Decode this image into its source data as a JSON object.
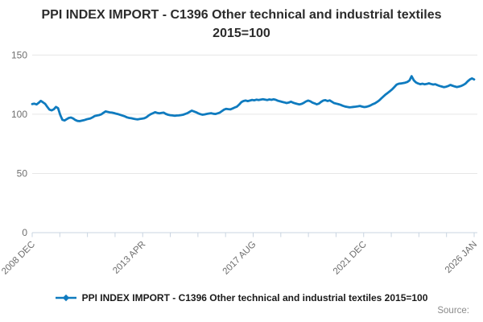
{
  "title": "PPI INDEX IMPORT - C1396 Other technical and industrial textiles 2015=100",
  "legend": {
    "label": "PPI INDEX IMPORT - C1396 Other technical and industrial textiles 2015=100"
  },
  "source_label": "Source:",
  "colors": {
    "line": "#0f7bbf",
    "grid": "#e6e6e6",
    "axis": "#c9d4e0",
    "tick_label": "#6e6e6e",
    "title_text": "#2b2b2b",
    "source_text": "#8a8a8a"
  },
  "chart_data": {
    "type": "line",
    "title": "PPI INDEX IMPORT - C1396 Other technical and industrial textiles 2015=100",
    "x_start": "2008 DEC",
    "x_end": "2026 JAN",
    "frequency": "monthly",
    "ylim": [
      0,
      155
    ],
    "yticks": [
      0,
      50,
      100,
      150
    ],
    "xticklabels": [
      "2008 DEC",
      "2013 APR",
      "2017 AUG",
      "2021 DEC",
      "2026 JAN"
    ],
    "x_tick_count": 17,
    "xlabel_every": 4,
    "grid": "horizontal",
    "legend_position": "bottom",
    "series": [
      {
        "name": "PPI INDEX IMPORT - C1396 Other technical and industrial textiles 2015=100",
        "values": [
          108.6,
          108.9,
          108.3,
          109.6,
          111.3,
          110.1,
          108.8,
          106.3,
          103.9,
          103.3,
          104.2,
          106.2,
          105.2,
          99.5,
          95.3,
          94.7,
          95.8,
          96.9,
          97.2,
          96.4,
          95.1,
          94.4,
          94.2,
          94.6,
          95.0,
          95.6,
          96.1,
          96.5,
          97.4,
          98.5,
          98.9,
          99.3,
          99.9,
          101.2,
          102.4,
          102.0,
          101.6,
          101.4,
          101.0,
          100.4,
          100.0,
          99.4,
          98.8,
          98.2,
          97.4,
          96.9,
          96.6,
          96.2,
          95.9,
          95.7,
          96.0,
          96.3,
          96.6,
          97.5,
          98.9,
          100.1,
          100.9,
          101.7,
          101.2,
          100.8,
          101.1,
          101.4,
          100.3,
          99.6,
          99.2,
          99.0,
          98.7,
          98.9,
          99.0,
          99.3,
          99.6,
          100.2,
          100.9,
          102.0,
          103.1,
          102.4,
          101.7,
          100.8,
          100.1,
          99.6,
          99.9,
          100.3,
          100.6,
          100.9,
          100.4,
          100.2,
          100.8,
          101.4,
          102.7,
          103.9,
          104.6,
          104.3,
          104.2,
          104.9,
          105.7,
          106.5,
          108.2,
          110.2,
          111.2,
          111.6,
          111.1,
          111.6,
          112.1,
          111.8,
          112.3,
          112.0,
          112.4,
          112.7,
          112.3,
          112.0,
          112.5,
          112.2,
          112.7,
          112.2,
          111.4,
          110.9,
          110.4,
          110.0,
          109.5,
          109.9,
          110.6,
          109.8,
          109.2,
          108.7,
          108.3,
          108.8,
          109.7,
          110.8,
          111.6,
          111.0,
          109.9,
          109.2,
          108.4,
          109.0,
          110.5,
          111.6,
          111.9,
          111.2,
          111.7,
          110.6,
          109.5,
          109.0,
          108.5,
          108.0,
          107.2,
          106.6,
          106.2,
          105.9,
          106.0,
          106.2,
          106.4,
          106.7,
          107.0,
          106.5,
          106.1,
          106.3,
          106.8,
          107.6,
          108.5,
          109.3,
          110.4,
          111.8,
          113.5,
          115.2,
          116.8,
          118.2,
          119.6,
          121.1,
          123.0,
          125.0,
          125.8,
          126.0,
          126.3,
          126.7,
          127.3,
          128.6,
          132.2,
          128.7,
          126.9,
          126.0,
          125.4,
          125.8,
          125.3,
          125.6,
          126.1,
          125.6,
          125.1,
          125.4,
          124.6,
          123.9,
          123.4,
          122.9,
          123.3,
          123.9,
          124.8,
          124.1,
          123.5,
          123.0,
          123.4,
          123.9,
          124.8,
          125.9,
          127.8,
          129.3,
          130.3,
          129.4
        ]
      }
    ]
  }
}
